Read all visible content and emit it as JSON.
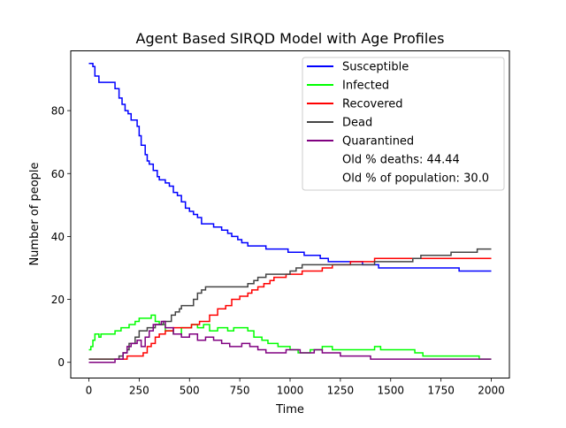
{
  "chart_data": {
    "type": "line",
    "title": "Agent Based SIRQD Model with Age Profiles",
    "xlabel": "Time",
    "ylabel": "Number of people",
    "xlim": [
      -90,
      2090
    ],
    "ylim": [
      -5,
      99
    ],
    "xticks": [
      0,
      250,
      500,
      750,
      1000,
      1250,
      1500,
      1750,
      2000
    ],
    "yticks": [
      0,
      20,
      40,
      60,
      80
    ],
    "grid": false,
    "legend_position": "top-right",
    "legend_notes": [
      "Old % deaths: 44.44",
      "Old % of population: 30.0"
    ],
    "series": [
      {
        "name": "Susceptible",
        "color": "#0000ff",
        "points": [
          [
            0,
            95
          ],
          [
            20,
            94
          ],
          [
            30,
            91
          ],
          [
            50,
            89
          ],
          [
            130,
            87
          ],
          [
            150,
            84
          ],
          [
            165,
            82
          ],
          [
            180,
            80
          ],
          [
            195,
            79
          ],
          [
            210,
            77
          ],
          [
            240,
            75
          ],
          [
            250,
            72
          ],
          [
            260,
            69
          ],
          [
            280,
            66
          ],
          [
            290,
            64
          ],
          [
            300,
            63
          ],
          [
            320,
            61
          ],
          [
            340,
            59
          ],
          [
            350,
            58
          ],
          [
            380,
            57
          ],
          [
            400,
            56
          ],
          [
            420,
            54
          ],
          [
            440,
            53
          ],
          [
            460,
            51
          ],
          [
            480,
            49
          ],
          [
            500,
            48
          ],
          [
            520,
            47
          ],
          [
            540,
            46
          ],
          [
            560,
            44
          ],
          [
            620,
            43
          ],
          [
            660,
            42
          ],
          [
            690,
            41
          ],
          [
            710,
            40
          ],
          [
            740,
            39
          ],
          [
            760,
            38
          ],
          [
            790,
            37
          ],
          [
            880,
            36
          ],
          [
            990,
            35
          ],
          [
            1070,
            34
          ],
          [
            1150,
            33
          ],
          [
            1190,
            32
          ],
          [
            1360,
            31
          ],
          [
            1440,
            30
          ],
          [
            1840,
            29
          ],
          [
            2000,
            29
          ]
        ]
      },
      {
        "name": "Infected",
        "color": "#00ff00",
        "points": [
          [
            0,
            4
          ],
          [
            10,
            5
          ],
          [
            20,
            7
          ],
          [
            30,
            9
          ],
          [
            50,
            8
          ],
          [
            60,
            9
          ],
          [
            100,
            9
          ],
          [
            130,
            10
          ],
          [
            160,
            11
          ],
          [
            200,
            12
          ],
          [
            230,
            13
          ],
          [
            250,
            14
          ],
          [
            310,
            15
          ],
          [
            330,
            13
          ],
          [
            350,
            12
          ],
          [
            380,
            10
          ],
          [
            420,
            9
          ],
          [
            460,
            11
          ],
          [
            510,
            12
          ],
          [
            540,
            11
          ],
          [
            570,
            12
          ],
          [
            600,
            10
          ],
          [
            640,
            11
          ],
          [
            690,
            10
          ],
          [
            720,
            11
          ],
          [
            790,
            10
          ],
          [
            820,
            8
          ],
          [
            860,
            7
          ],
          [
            890,
            6
          ],
          [
            940,
            5
          ],
          [
            1000,
            4
          ],
          [
            1040,
            3
          ],
          [
            1100,
            4
          ],
          [
            1160,
            5
          ],
          [
            1210,
            4
          ],
          [
            1420,
            5
          ],
          [
            1450,
            4
          ],
          [
            1620,
            3
          ],
          [
            1660,
            2
          ],
          [
            1900,
            2
          ],
          [
            1940,
            1
          ],
          [
            2000,
            1
          ]
        ]
      },
      {
        "name": "Recovered",
        "color": "#ff0000",
        "points": [
          [
            0,
            1
          ],
          [
            160,
            1
          ],
          [
            190,
            2
          ],
          [
            270,
            3
          ],
          [
            290,
            5
          ],
          [
            310,
            6
          ],
          [
            330,
            8
          ],
          [
            350,
            9
          ],
          [
            380,
            10
          ],
          [
            420,
            11
          ],
          [
            510,
            12
          ],
          [
            550,
            13
          ],
          [
            600,
            15
          ],
          [
            640,
            17
          ],
          [
            680,
            18
          ],
          [
            710,
            20
          ],
          [
            750,
            21
          ],
          [
            790,
            22
          ],
          [
            810,
            23
          ],
          [
            840,
            24
          ],
          [
            870,
            25
          ],
          [
            900,
            26
          ],
          [
            920,
            27
          ],
          [
            980,
            28
          ],
          [
            1060,
            29
          ],
          [
            1160,
            30
          ],
          [
            1210,
            31
          ],
          [
            1300,
            32
          ],
          [
            1420,
            33
          ],
          [
            2000,
            33
          ]
        ]
      },
      {
        "name": "Dead",
        "color": "#444444",
        "points": [
          [
            0,
            1
          ],
          [
            130,
            1
          ],
          [
            150,
            2
          ],
          [
            170,
            3
          ],
          [
            190,
            4
          ],
          [
            200,
            6
          ],
          [
            230,
            8
          ],
          [
            250,
            10
          ],
          [
            290,
            11
          ],
          [
            330,
            12
          ],
          [
            370,
            13
          ],
          [
            410,
            15
          ],
          [
            430,
            16
          ],
          [
            450,
            17
          ],
          [
            460,
            18
          ],
          [
            520,
            20
          ],
          [
            540,
            22
          ],
          [
            560,
            23
          ],
          [
            580,
            24
          ],
          [
            790,
            25
          ],
          [
            820,
            26
          ],
          [
            840,
            27
          ],
          [
            880,
            28
          ],
          [
            1000,
            29
          ],
          [
            1030,
            30
          ],
          [
            1060,
            31
          ],
          [
            1420,
            32
          ],
          [
            1610,
            33
          ],
          [
            1650,
            34
          ],
          [
            1800,
            35
          ],
          [
            1930,
            36
          ],
          [
            2000,
            36
          ]
        ]
      },
      {
        "name": "Quarantined",
        "color": "#800080",
        "points": [
          [
            0,
            0
          ],
          [
            130,
            1
          ],
          [
            170,
            3
          ],
          [
            190,
            5
          ],
          [
            210,
            6
          ],
          [
            240,
            7
          ],
          [
            260,
            5
          ],
          [
            280,
            8
          ],
          [
            300,
            10
          ],
          [
            320,
            12
          ],
          [
            360,
            13
          ],
          [
            380,
            11
          ],
          [
            420,
            9
          ],
          [
            460,
            8
          ],
          [
            500,
            9
          ],
          [
            540,
            7
          ],
          [
            580,
            8
          ],
          [
            620,
            7
          ],
          [
            660,
            6
          ],
          [
            700,
            5
          ],
          [
            760,
            6
          ],
          [
            800,
            5
          ],
          [
            840,
            4
          ],
          [
            880,
            3
          ],
          [
            960,
            3
          ],
          [
            980,
            4
          ],
          [
            1050,
            3
          ],
          [
            1120,
            4
          ],
          [
            1160,
            3
          ],
          [
            1250,
            2
          ],
          [
            1350,
            2
          ],
          [
            1400,
            1
          ],
          [
            2000,
            1
          ]
        ]
      }
    ]
  }
}
